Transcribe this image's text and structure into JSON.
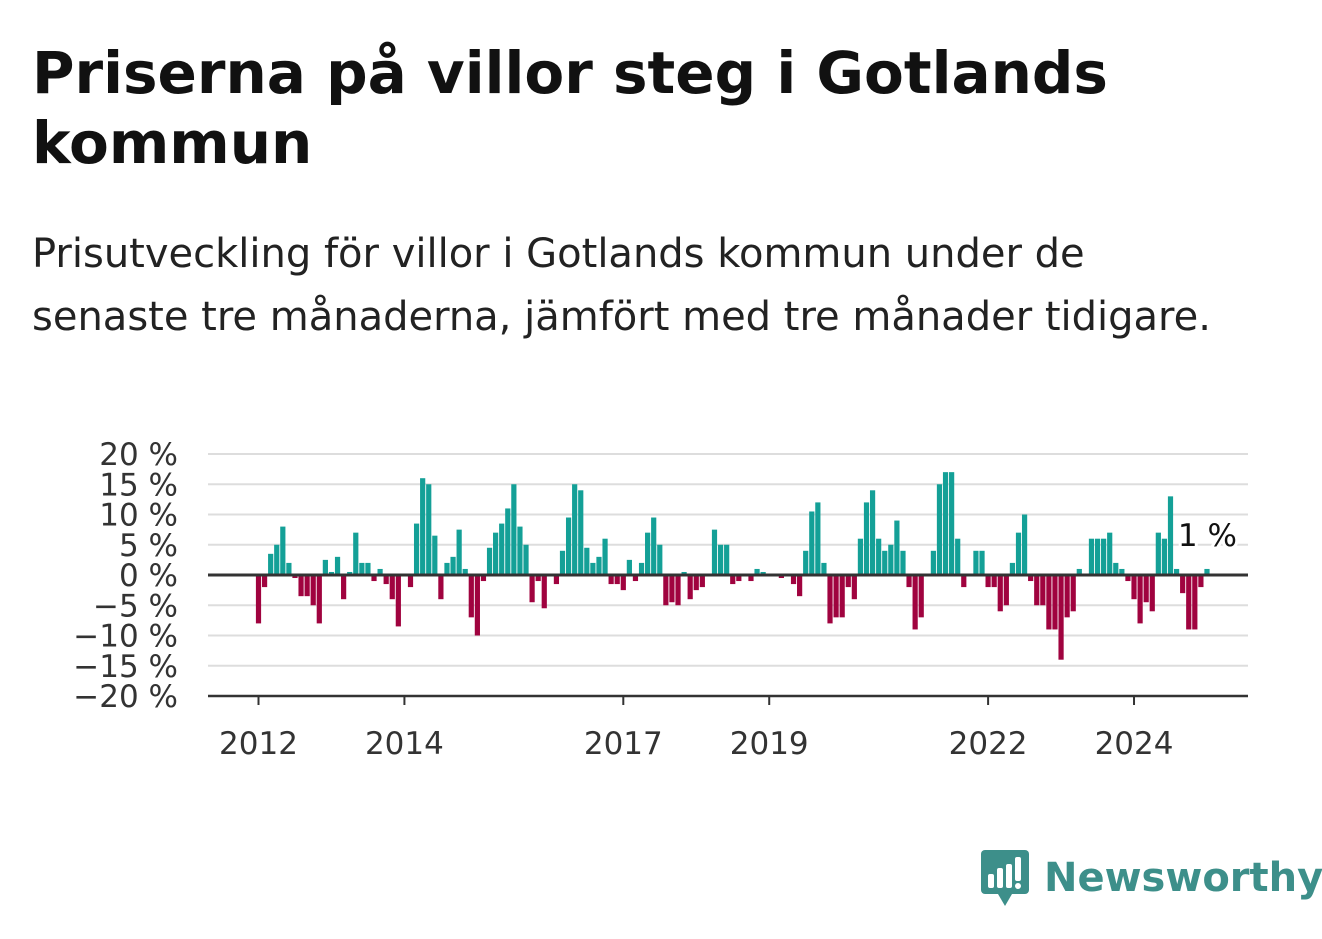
{
  "title": "Priserna på villor steg i Gotlands kommun",
  "subtitle": "Prisutveckling för villor i Gotlands kommun under de senaste tre månaderna, jämfört med tre månader tidigare.",
  "brand": "Newsworthy",
  "colors": {
    "positive": "#14a097",
    "negative": "#a0033f",
    "grid": "#dddddd",
    "axis": "#333333",
    "brand": "#3d8f8a"
  },
  "chart_data": {
    "type": "bar",
    "title": "",
    "xlabel": "",
    "ylabel": "",
    "ylim": [
      -20,
      20
    ],
    "y_ticks": [
      20,
      15,
      10,
      5,
      0,
      -5,
      -10,
      -15,
      -20
    ],
    "y_tick_labels": [
      "20 %",
      "15 %",
      "10 %",
      "5 %",
      "0 %",
      "−5 %",
      "−10 %",
      "−15 %",
      "−20 %"
    ],
    "x_tick_labels": [
      {
        "label": "2012",
        "index": 0
      },
      {
        "label": "2014",
        "index": 24
      },
      {
        "label": "2017",
        "index": 60
      },
      {
        "label": "2019",
        "index": 84
      },
      {
        "label": "2022",
        "index": 120
      },
      {
        "label": "2024",
        "index": 144
      }
    ],
    "grid": true,
    "start": "2012-01",
    "frequency": "monthly",
    "annotation": "1 %",
    "values": [
      -8,
      -2,
      3.5,
      5,
      8,
      2,
      -0.5,
      -3.5,
      -3.5,
      -5,
      -8,
      2.5,
      0.5,
      3,
      -4,
      0.5,
      7,
      2,
      2,
      -1,
      1,
      -1.5,
      -4,
      -8.5,
      0,
      -2,
      8.5,
      16,
      15,
      6.5,
      -4,
      2,
      3,
      7.5,
      1,
      -7,
      -10,
      -1,
      4.5,
      7,
      8.5,
      11,
      15,
      8,
      5,
      -4.5,
      -1,
      -5.5,
      0,
      -1.5,
      4,
      9.5,
      15,
      14,
      4.5,
      2,
      3,
      6,
      -1.5,
      -1.5,
      -2.5,
      2.5,
      -1,
      2,
      7,
      9.5,
      5,
      -5,
      -4.5,
      -5,
      0.5,
      -4,
      -2.5,
      -2,
      0,
      7.5,
      5,
      5,
      -1.5,
      -1,
      0,
      -1,
      1,
      0.5,
      0,
      0,
      -0.5,
      0,
      -1.5,
      -3.5,
      4,
      10.5,
      12,
      2,
      -8,
      -7,
      -7,
      -2,
      -4,
      6,
      12,
      14,
      6,
      4,
      5,
      9,
      4,
      -2,
      -9,
      -7,
      0,
      4,
      15,
      17,
      17,
      6,
      -2,
      0,
      4,
      4,
      -2,
      -2,
      -6,
      -5,
      2,
      7,
      10,
      -1,
      -5,
      -5,
      -9,
      -9,
      -14,
      -7,
      -6,
      1,
      0,
      6,
      6,
      6,
      7,
      2,
      1,
      -1,
      -4,
      -8,
      -4.5,
      -6,
      7,
      6,
      13,
      1,
      -3,
      -9,
      -9,
      -2,
      1
    ]
  }
}
